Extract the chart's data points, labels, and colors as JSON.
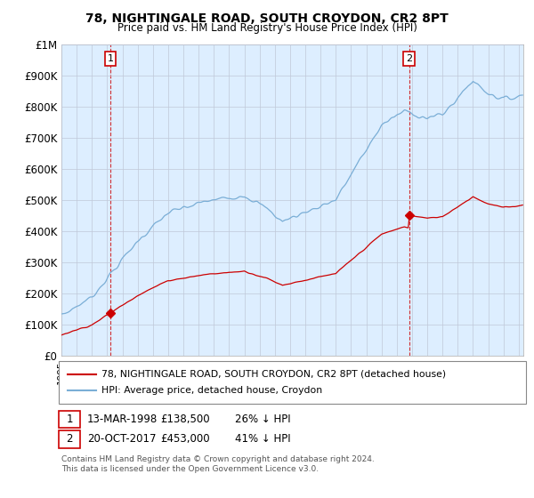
{
  "title": "78, NIGHTINGALE ROAD, SOUTH CROYDON, CR2 8PT",
  "subtitle": "Price paid vs. HM Land Registry's House Price Index (HPI)",
  "legend_entry1": "78, NIGHTINGALE ROAD, SOUTH CROYDON, CR2 8PT (detached house)",
  "legend_entry2": "HPI: Average price, detached house, Croydon",
  "annotation1_label": "1",
  "annotation1_date": "13-MAR-1998",
  "annotation1_price": "£138,500",
  "annotation1_hpi": "26% ↓ HPI",
  "annotation2_label": "2",
  "annotation2_date": "20-OCT-2017",
  "annotation2_price": "£453,000",
  "annotation2_hpi": "41% ↓ HPI",
  "footer": "Contains HM Land Registry data © Crown copyright and database right 2024.\nThis data is licensed under the Open Government Licence v3.0.",
  "hpi_color": "#7aaed6",
  "hpi_fill_color": "#ddeeff",
  "price_color": "#cc0000",
  "marker_color": "#cc0000",
  "vline_color": "#cc0000",
  "ylim_max": 1000000,
  "yticks": [
    0,
    100000,
    200000,
    300000,
    400000,
    500000,
    600000,
    700000,
    800000,
    900000,
    1000000
  ],
  "ytick_labels": [
    "£0",
    "£100K",
    "£200K",
    "£300K",
    "£400K",
    "£500K",
    "£600K",
    "£700K",
    "£800K",
    "£900K",
    "£1M"
  ],
  "sale1_x": 1998.21,
  "sale1_y": 138500,
  "sale2_x": 2017.8,
  "sale2_y": 453000,
  "xmin": 1995.0,
  "xmax": 2025.3
}
